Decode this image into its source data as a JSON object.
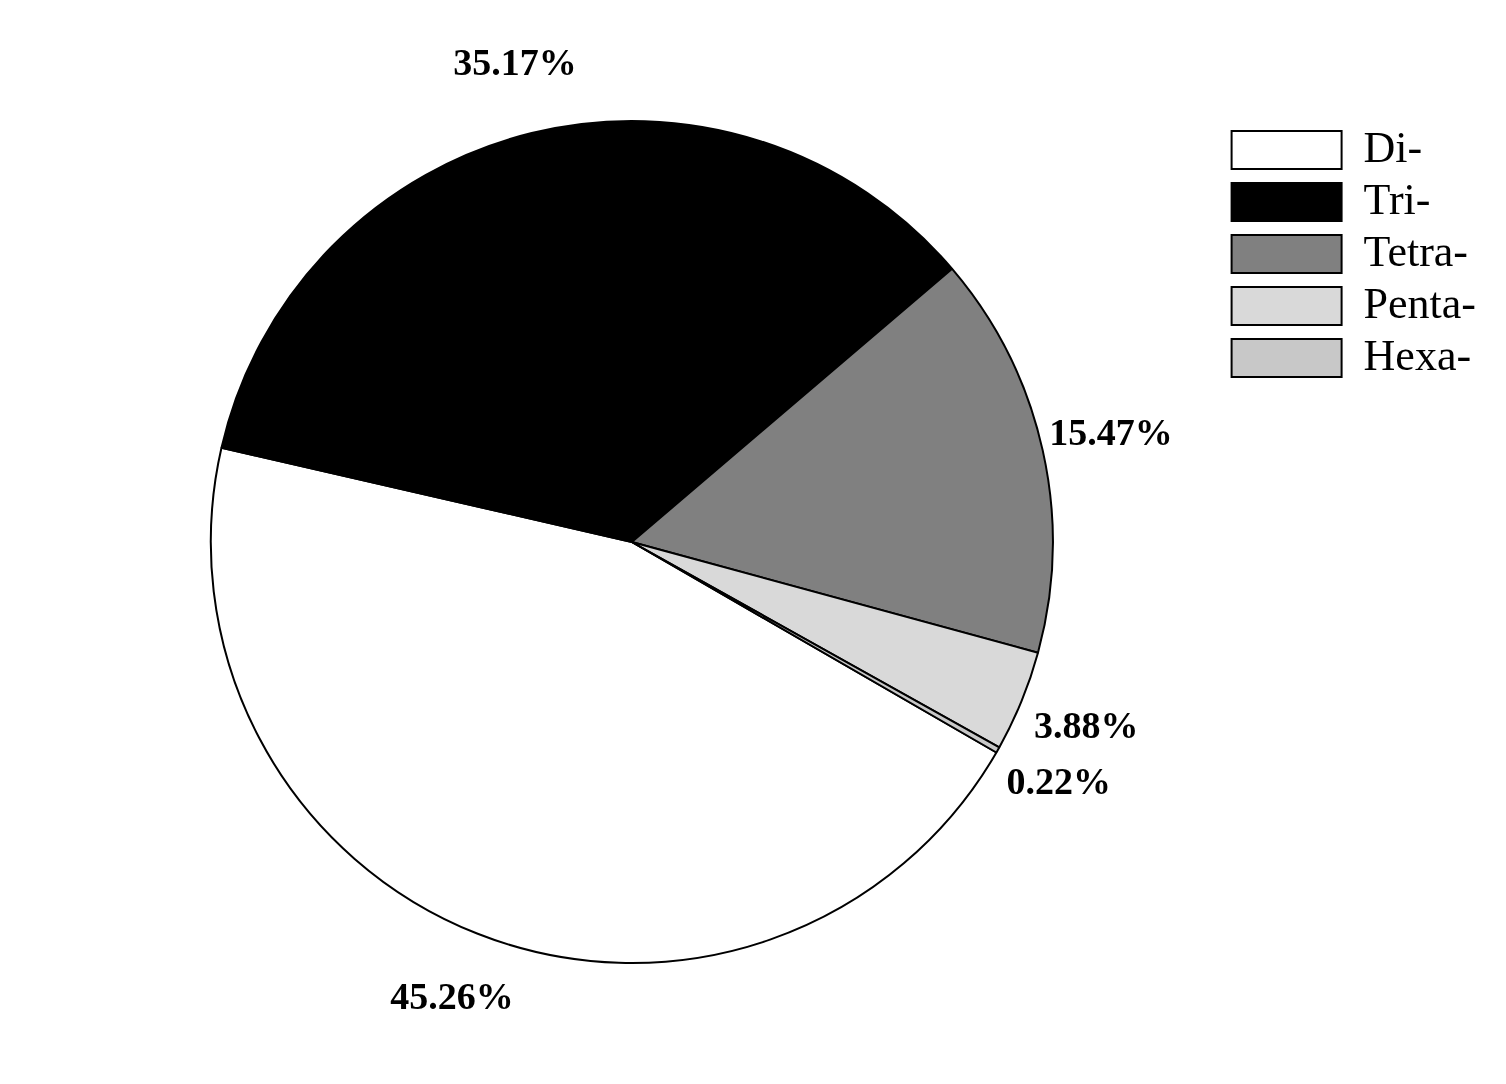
{
  "chart_data": {
    "type": "pie",
    "categories": [
      "Di-",
      "Tri-",
      "Tetra-",
      "Penta-",
      "Hexa-"
    ],
    "values": [
      45.26,
      35.17,
      15.47,
      3.88,
      0.22
    ],
    "colors": [
      "#ffffff",
      "#000000",
      "#808080",
      "#d9d9d9",
      "#c8c8c8"
    ],
    "value_labels": [
      "45.26%",
      "35.17%",
      "15.47%",
      "3.88%",
      "0.22%"
    ],
    "legend": "top right"
  }
}
